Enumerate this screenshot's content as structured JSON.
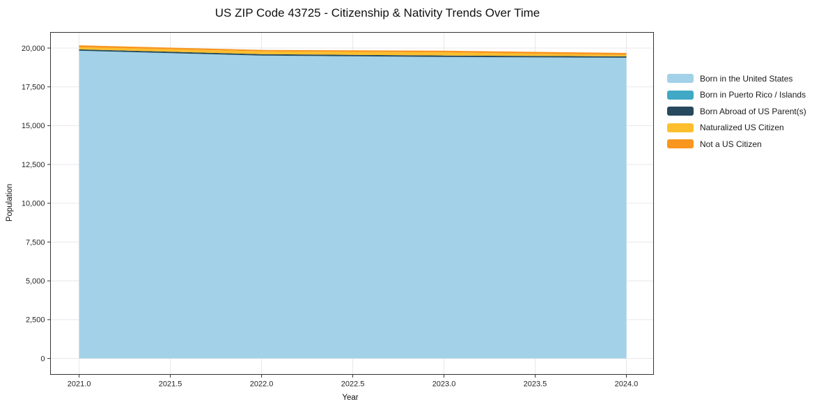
{
  "chart_data": {
    "type": "area",
    "stacked": true,
    "title": "US ZIP Code 43725 - Citizenship & Nativity Trends Over Time",
    "xlabel": "Year",
    "ylabel": "Population",
    "x": [
      2021,
      2022,
      2023,
      2024
    ],
    "series": [
      {
        "name": "Born in the United States",
        "color": "#a3d2e8",
        "values": [
          19820,
          19510,
          19420,
          19370
        ]
      },
      {
        "name": "Born in Puerto Rico / Islands",
        "color": "#41a8c6",
        "values": [
          12,
          10,
          10,
          10
        ]
      },
      {
        "name": "Born Abroad of US Parent(s)",
        "color": "#27495d",
        "values": [
          85,
          90,
          90,
          85
        ]
      },
      {
        "name": "Naturalized US Citizen",
        "color": "#fdbf2d",
        "values": [
          135,
          180,
          200,
          90
        ]
      },
      {
        "name": "Not a US Citizen",
        "color": "#f8961f",
        "values": [
          125,
          90,
          110,
          130
        ]
      }
    ],
    "x_ticks": [
      {
        "value": 2021.0,
        "label": "2021.0"
      },
      {
        "value": 2021.5,
        "label": "2021.5"
      },
      {
        "value": 2022.0,
        "label": "2022.0"
      },
      {
        "value": 2022.5,
        "label": "2022.5"
      },
      {
        "value": 2023.0,
        "label": "2023.0"
      },
      {
        "value": 2023.5,
        "label": "2023.5"
      },
      {
        "value": 2024.0,
        "label": "2024.0"
      }
    ],
    "y_ticks": [
      {
        "value": 0,
        "label": "0"
      },
      {
        "value": 2500,
        "label": "2,500"
      },
      {
        "value": 5000,
        "label": "5,000"
      },
      {
        "value": 7500,
        "label": "7,500"
      },
      {
        "value": 10000,
        "label": "10,000"
      },
      {
        "value": 12500,
        "label": "12,500"
      },
      {
        "value": 15000,
        "label": "15,000"
      },
      {
        "value": 17500,
        "label": "17,500"
      },
      {
        "value": 20000,
        "label": "20,000"
      }
    ],
    "xlim": [
      2020.843,
      2024.149
    ],
    "ylim": [
      -1030,
      21010
    ],
    "grid": true,
    "legend_position": "right"
  }
}
